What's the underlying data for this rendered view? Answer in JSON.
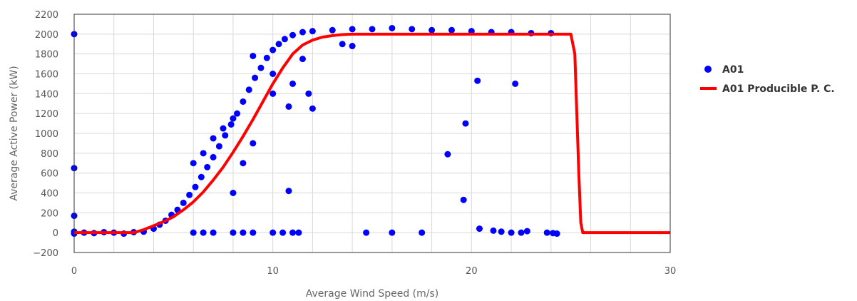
{
  "chart_data": {
    "type": "scatter",
    "xlabel": "Average Wind Speed (m/s)",
    "ylabel": "Average Active Power (kW)",
    "xlim": [
      0,
      30
    ],
    "ylim": [
      -200,
      2200
    ],
    "x_ticks": [
      0,
      10,
      20,
      30
    ],
    "y_ticks": [
      -200,
      0,
      200,
      400,
      600,
      800,
      1000,
      1200,
      1400,
      1600,
      1800,
      2000,
      2200
    ],
    "grid": true,
    "legend_position": "right",
    "series": [
      {
        "name": "A01",
        "kind": "scatter",
        "color": "#0000ff",
        "points": [
          [
            0.0,
            2000
          ],
          [
            0.0,
            650
          ],
          [
            0.0,
            170
          ],
          [
            0.0,
            10
          ],
          [
            0.0,
            -10
          ],
          [
            0.5,
            0
          ],
          [
            1.0,
            -5
          ],
          [
            1.5,
            5
          ],
          [
            2.0,
            0
          ],
          [
            2.5,
            -10
          ],
          [
            3.0,
            5
          ],
          [
            3.5,
            10
          ],
          [
            4.0,
            40
          ],
          [
            4.3,
            80
          ],
          [
            4.6,
            120
          ],
          [
            4.9,
            180
          ],
          [
            5.2,
            230
          ],
          [
            5.5,
            300
          ],
          [
            5.8,
            380
          ],
          [
            6.1,
            460
          ],
          [
            6.4,
            560
          ],
          [
            6.7,
            660
          ],
          [
            7.0,
            760
          ],
          [
            7.3,
            870
          ],
          [
            7.6,
            980
          ],
          [
            7.9,
            1090
          ],
          [
            8.2,
            1200
          ],
          [
            8.5,
            1320
          ],
          [
            8.8,
            1440
          ],
          [
            9.1,
            1560
          ],
          [
            9.4,
            1660
          ],
          [
            9.7,
            1760
          ],
          [
            10.0,
            1840
          ],
          [
            10.3,
            1900
          ],
          [
            10.6,
            1950
          ],
          [
            11.0,
            1990
          ],
          [
            11.5,
            2020
          ],
          [
            12.0,
            2030
          ],
          [
            13.0,
            2040
          ],
          [
            14.0,
            2050
          ],
          [
            15.0,
            2050
          ],
          [
            16.0,
            2060
          ],
          [
            17.0,
            2050
          ],
          [
            18.0,
            2040
          ],
          [
            19.0,
            2040
          ],
          [
            20.0,
            2030
          ],
          [
            21.0,
            2020
          ],
          [
            22.0,
            2020
          ],
          [
            23.0,
            2010
          ],
          [
            24.0,
            2010
          ],
          [
            6.0,
            700
          ],
          [
            6.5,
            800
          ],
          [
            7.0,
            950
          ],
          [
            7.5,
            1050
          ],
          [
            8.0,
            1150
          ],
          [
            9.0,
            1780
          ],
          [
            8.0,
            400
          ],
          [
            8.5,
            700
          ],
          [
            9.0,
            900
          ],
          [
            10.0,
            1400
          ],
          [
            11.0,
            1500
          ],
          [
            11.8,
            1400
          ],
          [
            10.8,
            1270
          ],
          [
            10.0,
            1600
          ],
          [
            11.5,
            1750
          ],
          [
            12.0,
            1250
          ],
          [
            10.8,
            420
          ],
          [
            13.5,
            1900
          ],
          [
            14.0,
            1880
          ],
          [
            6.0,
            0
          ],
          [
            6.5,
            0
          ],
          [
            7.0,
            0
          ],
          [
            8.0,
            0
          ],
          [
            8.5,
            0
          ],
          [
            9.0,
            0
          ],
          [
            10.0,
            0
          ],
          [
            10.5,
            0
          ],
          [
            11.0,
            0
          ],
          [
            11.3,
            0
          ],
          [
            14.7,
            0
          ],
          [
            16.0,
            0
          ],
          [
            17.5,
            0
          ],
          [
            18.8,
            790
          ],
          [
            19.7,
            1100
          ],
          [
            19.6,
            330
          ],
          [
            20.3,
            1530
          ],
          [
            22.2,
            1500
          ],
          [
            20.4,
            40
          ],
          [
            21.1,
            20
          ],
          [
            21.5,
            10
          ],
          [
            22.0,
            0
          ],
          [
            22.5,
            0
          ],
          [
            22.8,
            15
          ],
          [
            23.8,
            0
          ],
          [
            24.1,
            -5
          ],
          [
            24.3,
            -10
          ]
        ]
      },
      {
        "name": "A01 Producible P. C.",
        "kind": "line",
        "color": "#ff0000",
        "points": [
          [
            0,
            0
          ],
          [
            3,
            0
          ],
          [
            3.5,
            30
          ],
          [
            4,
            70
          ],
          [
            4.5,
            110
          ],
          [
            5,
            160
          ],
          [
            5.5,
            230
          ],
          [
            6,
            310
          ],
          [
            6.5,
            410
          ],
          [
            7,
            530
          ],
          [
            7.5,
            660
          ],
          [
            8,
            810
          ],
          [
            8.5,
            970
          ],
          [
            9,
            1140
          ],
          [
            9.5,
            1320
          ],
          [
            10,
            1500
          ],
          [
            10.5,
            1660
          ],
          [
            11,
            1800
          ],
          [
            11.5,
            1890
          ],
          [
            12,
            1940
          ],
          [
            12.5,
            1970
          ],
          [
            13,
            1985
          ],
          [
            13.5,
            1995
          ],
          [
            14,
            2000
          ],
          [
            25,
            2000
          ],
          [
            25.2,
            1800
          ],
          [
            25.3,
            1200
          ],
          [
            25.4,
            600
          ],
          [
            25.5,
            100
          ],
          [
            25.6,
            0
          ],
          [
            30,
            0
          ]
        ]
      }
    ]
  }
}
